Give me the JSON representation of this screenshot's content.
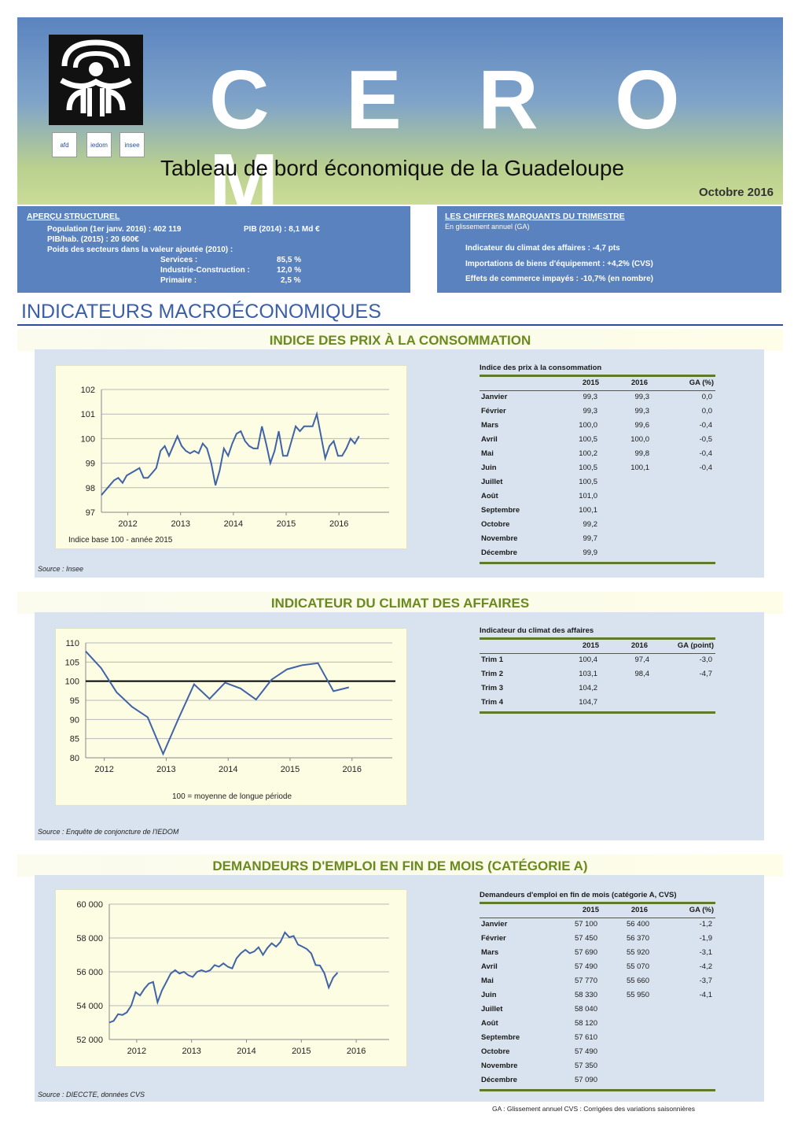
{
  "header": {
    "brand": "C E R O M",
    "subtitle": "Tableau de bord économique de la Guadeloupe",
    "date": "Octobre 2016",
    "partners": [
      "afd",
      "iedom",
      "insee"
    ]
  },
  "apercu": {
    "title": "APERÇU STRUCTUREL",
    "population": "Population (1er janv. 2016) : 402 119",
    "pib": "PIB (2014) : 8,1 Md €",
    "pib_hab": "PIB/hab. (2015) : 20 600€",
    "poids": "Poids des secteurs dans la valeur ajoutée (2010) :",
    "sectors": [
      {
        "label": "Services :",
        "value": "85,5 %"
      },
      {
        "label": "Industrie-Construction :",
        "value": "12,0 %"
      },
      {
        "label": "Primaire :",
        "value": "2,5 %"
      }
    ]
  },
  "chiffres": {
    "title": "LES CHIFFRES MARQUANTS DU TRIMESTRE",
    "note": "En glissement annuel (GA)",
    "items": [
      "Indicateur du climat des affaires : -4,7 pts",
      "Importations de biens d'équipement : +4,2% (CVS)",
      "Effets de commerce impayés : -10,7% (en nombre)"
    ]
  },
  "section_title": "INDICATEURS MACROÉCONOMIQUES",
  "ipc": {
    "band_title": "INDICE DES PRIX À LA CONSOMMATION",
    "source": "Source : Insee",
    "table_title": "Indice des prix à la consommation",
    "headers": [
      "2015",
      "2016",
      "GA (%)"
    ],
    "rows": [
      {
        "m": "Janvier",
        "a": "99,3",
        "b": "99,3",
        "ga": "0,0"
      },
      {
        "m": "Février",
        "a": "99,3",
        "b": "99,3",
        "ga": "0,0"
      },
      {
        "m": "Mars",
        "a": "100,0",
        "b": "99,6",
        "ga": "-0,4"
      },
      {
        "m": "Avril",
        "a": "100,5",
        "b": "100,0",
        "ga": "-0,5"
      },
      {
        "m": "Mai",
        "a": "100,2",
        "b": "99,8",
        "ga": "-0,4"
      },
      {
        "m": "Juin",
        "a": "100,5",
        "b": "100,1",
        "ga": "-0,4"
      },
      {
        "m": "Juillet",
        "a": "100,5",
        "b": "",
        "ga": ""
      },
      {
        "m": "Août",
        "a": "101,0",
        "b": "",
        "ga": ""
      },
      {
        "m": "Septembre",
        "a": "100,1",
        "b": "",
        "ga": ""
      },
      {
        "m": "Octobre",
        "a": "99,2",
        "b": "",
        "ga": ""
      },
      {
        "m": "Novembre",
        "a": "99,7",
        "b": "",
        "ga": ""
      },
      {
        "m": "Décembre",
        "a": "99,9",
        "b": "",
        "ga": ""
      }
    ]
  },
  "ica": {
    "band_title": "INDICATEUR DU CLIMAT DES AFFAIRES",
    "source": "Source : Enquête de conjoncture de l'IEDOM",
    "table_title": "Indicateur du climat des affaires",
    "headers": [
      "2015",
      "2016",
      "GA (point)"
    ],
    "rows": [
      {
        "m": "Trim 1",
        "a": "100,4",
        "b": "97,4",
        "ga": "-3,0"
      },
      {
        "m": "Trim 2",
        "a": "103,1",
        "b": "98,4",
        "ga": "-4,7"
      },
      {
        "m": "Trim 3",
        "a": "104,2",
        "b": "",
        "ga": ""
      },
      {
        "m": "Trim 4",
        "a": "104,7",
        "b": "",
        "ga": ""
      }
    ]
  },
  "demandeurs": {
    "band_title": "DEMANDEURS D'EMPLOI EN FIN DE MOIS (CATÉGORIE A)",
    "source": "Source : DIECCTE, données CVS",
    "table_title": "Demandeurs d'emploi en fin de mois (catégorie A, CVS)",
    "headers": [
      "2015",
      "2016",
      "GA (%)"
    ],
    "rows": [
      {
        "m": "Janvier",
        "a": "57 100",
        "b": "56 400",
        "ga": "-1,2"
      },
      {
        "m": "Février",
        "a": "57 450",
        "b": "56 370",
        "ga": "-1,9"
      },
      {
        "m": "Mars",
        "a": "57 690",
        "b": "55 920",
        "ga": "-3,1"
      },
      {
        "m": "Avril",
        "a": "57 490",
        "b": "55 070",
        "ga": "-4,2"
      },
      {
        "m": "Mai",
        "a": "57 770",
        "b": "55 660",
        "ga": "-3,7"
      },
      {
        "m": "Juin",
        "a": "58 330",
        "b": "55 950",
        "ga": "-4,1"
      },
      {
        "m": "Juillet",
        "a": "58 040",
        "b": "",
        "ga": ""
      },
      {
        "m": "Août",
        "a": "58 120",
        "b": "",
        "ga": ""
      },
      {
        "m": "Septembre",
        "a": "57 610",
        "b": "",
        "ga": ""
      },
      {
        "m": "Octobre",
        "a": "57 490",
        "b": "",
        "ga": ""
      },
      {
        "m": "Novembre",
        "a": "57 350",
        "b": "",
        "ga": ""
      },
      {
        "m": "Décembre",
        "a": "57 090",
        "b": "",
        "ga": ""
      }
    ]
  },
  "footnote": "GA : Glissement annuel        CVS : Corrigées des variations saisonnières",
  "colors": {
    "header_blue": "#5a82be",
    "line": "#3f63a6",
    "band_green": "#6a8a1e"
  },
  "chart_data": [
    {
      "type": "line",
      "title": "",
      "note": "Indice base 100 - année 2015",
      "xlabel": "",
      "ylabel": "",
      "ylim": [
        97,
        102
      ],
      "xlim": [
        2011.5,
        2016.95
      ],
      "ticks_y": [
        "97",
        "98",
        "99",
        "100",
        "101",
        "102"
      ],
      "ticks_x": [
        "2012",
        "2013",
        "2014",
        "2015",
        "2016"
      ],
      "grid": true,
      "series": [
        {
          "values": [
            [
              2011.5,
              97.7
            ],
            [
              2011.58,
              97.9
            ],
            [
              2011.66,
              98.1
            ],
            [
              2011.74,
              98.3
            ],
            [
              2011.82,
              98.4
            ],
            [
              2011.9,
              98.2
            ],
            [
              2011.98,
              98.5
            ],
            [
              2012.06,
              98.6
            ],
            [
              2012.14,
              98.7
            ],
            [
              2012.22,
              98.8
            ],
            [
              2012.3,
              98.4
            ],
            [
              2012.38,
              98.4
            ],
            [
              2012.46,
              98.6
            ],
            [
              2012.54,
              98.8
            ],
            [
              2012.62,
              99.5
            ],
            [
              2012.7,
              99.7
            ],
            [
              2012.78,
              99.3
            ],
            [
              2012.86,
              99.7
            ],
            [
              2012.94,
              100.1
            ],
            [
              2013.02,
              99.7
            ],
            [
              2013.1,
              99.5
            ],
            [
              2013.18,
              99.4
            ],
            [
              2013.26,
              99.5
            ],
            [
              2013.34,
              99.4
            ],
            [
              2013.42,
              99.8
            ],
            [
              2013.5,
              99.6
            ],
            [
              2013.58,
              99.0
            ],
            [
              2013.66,
              98.1
            ],
            [
              2013.74,
              98.7
            ],
            [
              2013.82,
              99.6
            ],
            [
              2013.9,
              99.3
            ],
            [
              2013.98,
              99.8
            ],
            [
              2014.06,
              100.2
            ],
            [
              2014.14,
              100.3
            ],
            [
              2014.22,
              99.9
            ],
            [
              2014.3,
              99.7
            ],
            [
              2014.38,
              99.6
            ],
            [
              2014.46,
              99.6
            ],
            [
              2014.54,
              100.5
            ],
            [
              2014.62,
              99.8
            ],
            [
              2014.7,
              99.0
            ],
            [
              2014.78,
              99.5
            ],
            [
              2014.86,
              100.3
            ],
            [
              2014.94,
              99.3
            ],
            [
              2015.02,
              99.3
            ],
            [
              2015.1,
              99.9
            ],
            [
              2015.18,
              100.5
            ],
            [
              2015.26,
              100.3
            ],
            [
              2015.34,
              100.5
            ],
            [
              2015.42,
              100.5
            ],
            [
              2015.5,
              100.5
            ],
            [
              2015.58,
              101.0
            ],
            [
              2015.66,
              100.1
            ],
            [
              2015.74,
              99.2
            ],
            [
              2015.82,
              99.7
            ],
            [
              2015.9,
              99.9
            ],
            [
              2015.98,
              99.3
            ],
            [
              2016.06,
              99.3
            ],
            [
              2016.14,
              99.6
            ],
            [
              2016.22,
              100.0
            ],
            [
              2016.3,
              99.8
            ],
            [
              2016.38,
              100.1
            ]
          ]
        }
      ]
    },
    {
      "type": "line",
      "title": "",
      "note": "100 = moyenne de longue période",
      "xlabel": "",
      "ylabel": "",
      "ylim": [
        80,
        110
      ],
      "xlim": [
        2011.7,
        2016.65
      ],
      "reference_line": 100,
      "ticks_y": [
        "80",
        "85",
        "90",
        "95",
        "100",
        "105",
        "110"
      ],
      "ticks_x": [
        "2012",
        "2013",
        "2014",
        "2015",
        "2016"
      ],
      "grid": true,
      "series": [
        {
          "values": [
            [
              2011.7,
              107.8
            ],
            [
              2011.95,
              103.4
            ],
            [
              2012.2,
              97.1
            ],
            [
              2012.45,
              93.3
            ],
            [
              2012.7,
              90.6
            ],
            [
              2012.95,
              81.0
            ],
            [
              2013.2,
              90.3
            ],
            [
              2013.45,
              99.2
            ],
            [
              2013.7,
              95.4
            ],
            [
              2013.95,
              99.6
            ],
            [
              2014.2,
              98.1
            ],
            [
              2014.45,
              95.2
            ],
            [
              2014.7,
              100.4
            ],
            [
              2014.95,
              103.1
            ],
            [
              2015.2,
              104.2
            ],
            [
              2015.45,
              104.7
            ],
            [
              2015.7,
              97.4
            ],
            [
              2015.95,
              98.4
            ]
          ]
        }
      ]
    },
    {
      "type": "line",
      "title": "",
      "xlabel": "",
      "ylabel": "",
      "ylim": [
        52000,
        60000
      ],
      "xlim": [
        2011.5,
        2016.6
      ],
      "ticks_y": [
        "52 000",
        "54 000",
        "56 000",
        "58 000",
        "60 000"
      ],
      "ticks_x": [
        "2012",
        "2013",
        "2014",
        "2015",
        "2016"
      ],
      "grid": true,
      "series": [
        {
          "values": [
            [
              2011.5,
              53000
            ],
            [
              2011.58,
              53100
            ],
            [
              2011.66,
              53500
            ],
            [
              2011.74,
              53450
            ],
            [
              2011.82,
              53600
            ],
            [
              2011.9,
              54000
            ],
            [
              2011.98,
              54800
            ],
            [
              2012.06,
              54600
            ],
            [
              2012.14,
              55000
            ],
            [
              2012.22,
              55300
            ],
            [
              2012.3,
              55400
            ],
            [
              2012.38,
              54200
            ],
            [
              2012.46,
              54900
            ],
            [
              2012.54,
              55400
            ],
            [
              2012.62,
              55900
            ],
            [
              2012.7,
              56100
            ],
            [
              2012.78,
              55900
            ],
            [
              2012.86,
              56000
            ],
            [
              2012.94,
              55800
            ],
            [
              2013.02,
              55700
            ],
            [
              2013.1,
              56000
            ],
            [
              2013.18,
              56100
            ],
            [
              2013.26,
              56000
            ],
            [
              2013.34,
              56100
            ],
            [
              2013.42,
              56400
            ],
            [
              2013.5,
              56300
            ],
            [
              2013.58,
              56500
            ],
            [
              2013.66,
              56300
            ],
            [
              2013.74,
              56200
            ],
            [
              2013.82,
              56800
            ],
            [
              2013.9,
              57100
            ],
            [
              2013.98,
              57300
            ],
            [
              2014.06,
              57100
            ],
            [
              2014.14,
              57200
            ],
            [
              2014.22,
              57450
            ],
            [
              2014.3,
              57000
            ],
            [
              2014.38,
              57400
            ],
            [
              2014.46,
              57690
            ],
            [
              2014.54,
              57490
            ],
            [
              2014.62,
              57770
            ],
            [
              2014.7,
              58330
            ],
            [
              2014.78,
              58040
            ],
            [
              2014.86,
              58120
            ],
            [
              2014.94,
              57610
            ],
            [
              2015.02,
              57490
            ],
            [
              2015.1,
              57350
            ],
            [
              2015.18,
              57090
            ],
            [
              2015.26,
              56400
            ],
            [
              2015.34,
              56370
            ],
            [
              2015.42,
              55920
            ],
            [
              2015.5,
              55070
            ],
            [
              2015.58,
              55660
            ],
            [
              2015.66,
              55950
            ]
          ]
        }
      ]
    }
  ]
}
